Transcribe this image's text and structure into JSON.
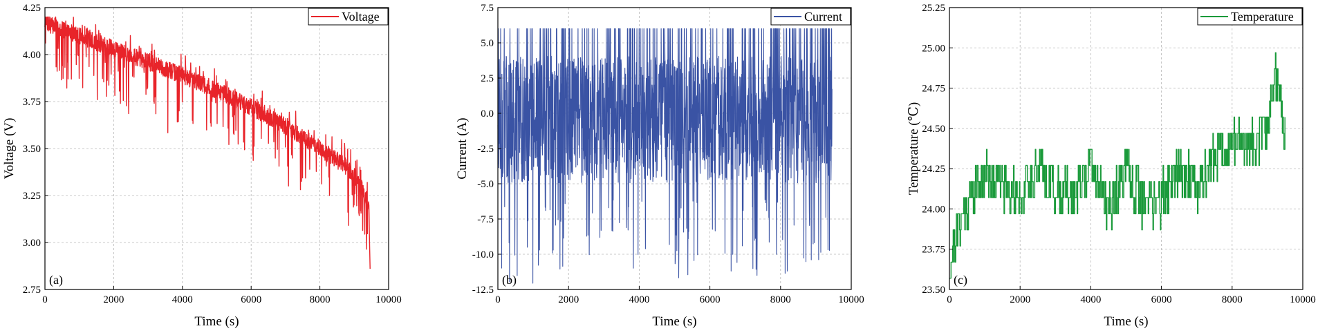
{
  "charts": [
    {
      "panel_label": "(a)",
      "type": "line",
      "xlabel": "Time (s)",
      "ylabel": "Voltage (V)",
      "xlim": [
        0,
        10000
      ],
      "ylim": [
        2.75,
        4.25
      ],
      "xticks": [
        0,
        2000,
        4000,
        6000,
        8000,
        10000
      ],
      "xtick_labels": [
        "0",
        "2000",
        "4000",
        "6000",
        "8000",
        "10000"
      ],
      "yticks": [
        2.75,
        3.0,
        3.25,
        3.5,
        3.75,
        4.0,
        4.25
      ],
      "ytick_labels": [
        "2.75",
        "3.00",
        "3.25",
        "3.50",
        "3.75",
        "4.00",
        "4.25"
      ],
      "grid": true,
      "legend_position": "top-right",
      "series": [
        {
          "name": "Voltage",
          "color": "#e8242a",
          "base": [
            [
              0,
              4.17
            ],
            [
              1000,
              4.1
            ],
            [
              2000,
              4.03
            ],
            [
              3000,
              3.96
            ],
            [
              4000,
              3.89
            ],
            [
              5000,
              3.81
            ],
            [
              6000,
              3.72
            ],
            [
              7000,
              3.62
            ],
            [
              8000,
              3.5
            ],
            [
              8800,
              3.4
            ],
            [
              9200,
              3.3
            ],
            [
              9400,
              3.2
            ],
            [
              9450,
              3.15
            ]
          ],
          "dip_depth": [
            0.3,
            0.0,
            0.38
          ],
          "end_point": [
            9460,
            2.86
          ],
          "kind": "voltage"
        }
      ]
    },
    {
      "panel_label": "(b)",
      "type": "line",
      "xlabel": "Time (s)",
      "ylabel": "Current (A)",
      "xlim": [
        0,
        10000
      ],
      "ylim": [
        -12.5,
        7.5
      ],
      "xticks": [
        0,
        2000,
        4000,
        6000,
        8000,
        10000
      ],
      "xtick_labels": [
        "0",
        "2000",
        "4000",
        "6000",
        "8000",
        "10000"
      ],
      "yticks": [
        -12.5,
        -10.0,
        -7.5,
        -5.0,
        -2.5,
        0.0,
        2.5,
        5.0,
        7.5
      ],
      "ytick_labels": [
        "-12.5",
        "-10.0",
        "-7.5",
        "-5.0",
        "-2.5",
        "0.0",
        "2.5",
        "5.0",
        "7.5"
      ],
      "grid": true,
      "legend_position": "top-right",
      "series": [
        {
          "name": "Current",
          "color": "#3a53a4",
          "max": 6.0,
          "min": -12.3,
          "end_x": 9460,
          "kind": "current"
        }
      ]
    },
    {
      "panel_label": "(c)",
      "type": "line",
      "xlabel": "Time (s)",
      "ylabel": "Temperature (℃)",
      "xlim": [
        0,
        10000
      ],
      "ylim": [
        23.5,
        25.25
      ],
      "xticks": [
        0,
        2000,
        4000,
        6000,
        8000,
        10000
      ],
      "xtick_labels": [
        "0",
        "2000",
        "4000",
        "6000",
        "8000",
        "10000"
      ],
      "yticks": [
        23.5,
        23.75,
        24.0,
        24.25,
        24.5,
        24.75,
        25.0,
        25.25
      ],
      "ytick_labels": [
        "23.50",
        "23.75",
        "24.00",
        "24.25",
        "24.50",
        "24.75",
        "25.00",
        "25.25"
      ],
      "grid": true,
      "legend_position": "top-right",
      "series": [
        {
          "name": "Temperature",
          "color": "#1a9a3a",
          "base": [
            [
              0,
              23.7
            ],
            [
              150,
              23.85
            ],
            [
              400,
              24.0
            ],
            [
              600,
              24.1
            ],
            [
              1000,
              24.25
            ],
            [
              1500,
              24.2
            ],
            [
              2000,
              24.1
            ],
            [
              2500,
              24.3
            ],
            [
              3000,
              24.15
            ],
            [
              3500,
              24.1
            ],
            [
              4000,
              24.3
            ],
            [
              4500,
              24.05
            ],
            [
              5000,
              24.25
            ],
            [
              5500,
              24.05
            ],
            [
              6000,
              24.1
            ],
            [
              6500,
              24.3
            ],
            [
              7000,
              24.15
            ],
            [
              7500,
              24.35
            ],
            [
              8000,
              24.45
            ],
            [
              8500,
              24.45
            ],
            [
              9000,
              24.5
            ],
            [
              9200,
              24.9
            ],
            [
              9400,
              24.65
            ],
            [
              9500,
              24.5
            ]
          ],
          "step": 0.1,
          "end_x": 9500,
          "kind": "temperature"
        }
      ]
    }
  ]
}
